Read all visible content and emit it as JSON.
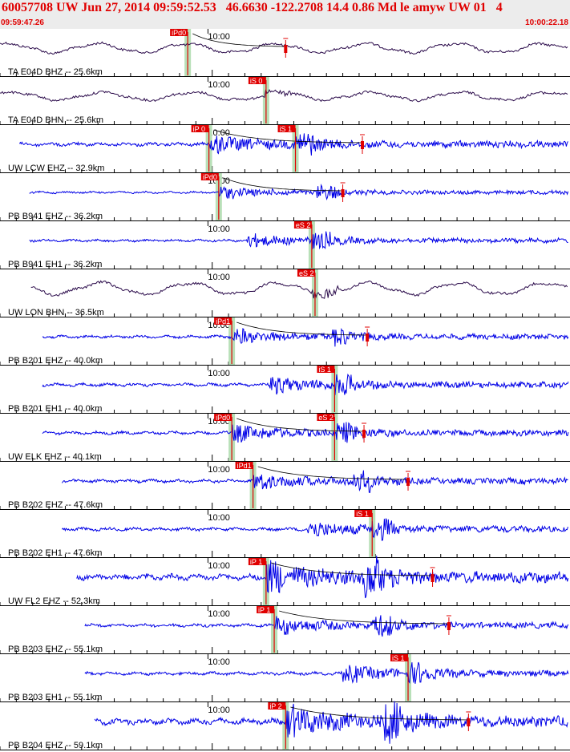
{
  "header": {
    "title": "60057708 UW Jun 27, 2014 09:59:52.53   46.6630 -122.2708 14.4 0.86 Md le amyw UW 01   4",
    "start_time": "09:59:47.26",
    "end_time": "10:00:22.18"
  },
  "colors": {
    "header_bg": "#ececec",
    "header_text": "#e00000",
    "trace_blue": "#0000e6",
    "trace_dark": "#2a0a4a",
    "pick_box": "#e00000",
    "pick_window": "#b8e0b8",
    "arrival_line": "#e00000",
    "coda_curve": "#000000"
  },
  "chart_data": {
    "type": "line",
    "title": "60057708 UW Jun 27, 2014 09:59:52.53   46.6630 -122.2708 14.4 0.86 Md le amyw UW 01   4",
    "time_start": "09:59:47.26",
    "time_end": "10:00:22.18",
    "tick_label": "10:00",
    "tick_interval_s": 1,
    "minute_mark_s": 12.74,
    "traces": [
      {
        "label": "TA E04D BHZ -- 25.6km",
        "style": "dark",
        "shape": "swell",
        "amp": 0.35,
        "start": 0.0,
        "end": 35.0,
        "p_pick": "iPd0",
        "p_time": 11.5,
        "s_pick": null,
        "s_time": null,
        "coda": true,
        "cross": 17.5
      },
      {
        "label": "TA E04D BHN -- 25.6km",
        "style": "dark",
        "shape": "swell",
        "amp": 0.3,
        "start": 0.0,
        "end": 35.0,
        "p_pick": null,
        "p_time": null,
        "s_pick": "iS 0",
        "s_time": 16.3,
        "coda": false,
        "cross": null
      },
      {
        "label": "UW LCW EHZ -- 32.9km",
        "style": "blue",
        "shape": "quake",
        "amp": 0.5,
        "start": 1.2,
        "end": 36.2,
        "p_pick": "iP 0",
        "p_time": 12.8,
        "s_pick": "iS 1",
        "s_time": 18.1,
        "coda": true,
        "cross": 22.2
      },
      {
        "label": "PB B941 EHZ -- 36.2km",
        "style": "blue",
        "shape": "quake",
        "amp": 0.3,
        "start": 1.8,
        "end": 36.8,
        "p_pick": "iPd0",
        "p_time": 13.4,
        "s_pick": null,
        "s_time": null,
        "coda": true,
        "cross": 21.0
      },
      {
        "label": "PB B941 EH1 -- 36.2km",
        "style": "blue",
        "shape": "quake",
        "amp": 0.35,
        "start": 1.8,
        "end": 36.8,
        "p_pick": null,
        "p_time": null,
        "s_pick": "eS 2",
        "s_time": 19.1,
        "coda": false,
        "cross": null
      },
      {
        "label": "UW LON BHN -- 36.5km",
        "style": "dark",
        "shape": "swell",
        "amp": 0.45,
        "start": 1.9,
        "end": 36.9,
        "p_pick": null,
        "p_time": null,
        "s_pick": "eS 2",
        "s_time": 19.3,
        "coda": false,
        "cross": null
      },
      {
        "label": "PB B201 EHZ -- 40.0km",
        "style": "blue",
        "shape": "quake",
        "amp": 0.4,
        "start": 2.6,
        "end": 37.6,
        "p_pick": "iPd1",
        "p_time": 14.2,
        "s_pick": null,
        "s_time": null,
        "coda": true,
        "cross": 22.5
      },
      {
        "label": "PB B201 EH1 -- 40.0km",
        "style": "blue",
        "shape": "quake",
        "amp": 0.45,
        "start": 2.6,
        "end": 37.6,
        "p_pick": null,
        "p_time": null,
        "s_pick": "iS 1",
        "s_time": 20.5,
        "coda": false,
        "cross": null
      },
      {
        "label": "UW ELK EHZ -- 40.1km",
        "style": "blue",
        "shape": "quake",
        "amp": 0.45,
        "start": 2.6,
        "end": 37.6,
        "p_pick": "iPd0",
        "p_time": 14.2,
        "s_pick": "eS 2",
        "s_time": 20.5,
        "coda": true,
        "cross": 22.3
      },
      {
        "label": "PB B202 EHZ -- 47.6km",
        "style": "blue",
        "shape": "quake",
        "amp": 0.45,
        "start": 3.8,
        "end": 38.8,
        "p_pick": "iPd1",
        "p_time": 15.5,
        "s_pick": null,
        "s_time": null,
        "coda": true,
        "cross": 25.0
      },
      {
        "label": "PB B202 EH1 -- 47.6km",
        "style": "blue",
        "shape": "quake",
        "amp": 0.45,
        "start": 3.8,
        "end": 38.8,
        "p_pick": null,
        "p_time": null,
        "s_pick": "iS 1",
        "s_time": 22.8,
        "coda": false,
        "cross": null
      },
      {
        "label": "UW FL2 EHZ -- 52.3km",
        "style": "blue",
        "shape": "quake",
        "amp": 0.85,
        "start": 4.7,
        "end": 39.7,
        "p_pick": "iP 1",
        "p_time": 16.3,
        "s_pick": null,
        "s_time": null,
        "coda": true,
        "cross": 26.5
      },
      {
        "label": "PB B203 EHZ -- 55.1km",
        "style": "blue",
        "shape": "quake",
        "amp": 0.45,
        "start": 5.2,
        "end": 40.2,
        "p_pick": "iP 1",
        "p_time": 16.8,
        "s_pick": null,
        "s_time": null,
        "coda": true,
        "cross": 27.5
      },
      {
        "label": "PB B203 EH1 -- 55.1km",
        "style": "blue",
        "shape": "quake",
        "amp": 0.45,
        "start": 5.2,
        "end": 40.2,
        "p_pick": null,
        "p_time": null,
        "s_pick": "iS 1",
        "s_time": 25.0,
        "coda": false,
        "cross": null
      },
      {
        "label": "PB B204 EHZ -- 59.1km",
        "style": "blue",
        "shape": "quake",
        "amp": 0.85,
        "start": 5.8,
        "end": 40.8,
        "p_pick": "iP 2",
        "p_time": 17.5,
        "s_pick": null,
        "s_time": null,
        "coda": true,
        "cross": 28.7
      }
    ]
  }
}
